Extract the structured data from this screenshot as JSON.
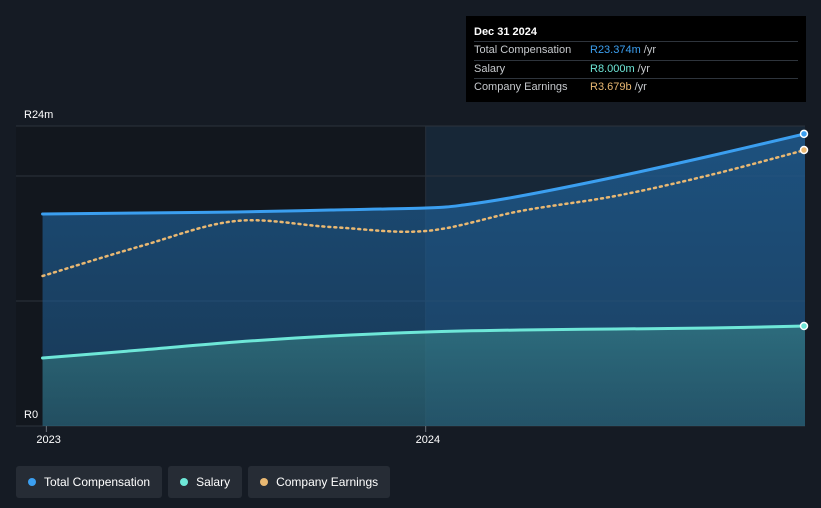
{
  "tooltip": {
    "date": "Dec 31 2024",
    "rows": [
      {
        "label": "Total Compensation",
        "value": "R23.374m",
        "unit": "/yr",
        "color": "#3b9ff0"
      },
      {
        "label": "Salary",
        "value": "R8.000m",
        "unit": "/yr",
        "color": "#6ee7d8"
      },
      {
        "label": "Company Earnings",
        "value": "R3.679b",
        "unit": "/yr",
        "color": "#e9b872"
      }
    ]
  },
  "legend": [
    {
      "label": "Total Compensation",
      "color": "#3b9ff0"
    },
    {
      "label": "Salary",
      "color": "#6ee7d8"
    },
    {
      "label": "Company Earnings",
      "color": "#e9b872"
    }
  ],
  "chart_data": {
    "type": "area",
    "title": "",
    "xlabel": "",
    "ylabel": "",
    "ylim": [
      0,
      24
    ],
    "y_tick_labels": [
      {
        "value": 24,
        "label": "R24m"
      },
      {
        "value": 0,
        "label": "R0"
      }
    ],
    "x_tick_labels": [
      {
        "value": 2023.0,
        "label": "2023"
      },
      {
        "value": 2024.0,
        "label": "2024"
      }
    ],
    "xlim": [
      2022.92,
      2025.0
    ],
    "highlight_from": 2024.0,
    "series": [
      {
        "name": "Total Compensation",
        "color": "#3b9ff0",
        "style": "solid-area",
        "x": [
          2022.99,
          2023.25,
          2023.5,
          2023.75,
          2024.0,
          2024.1,
          2024.25,
          2024.5,
          2024.75,
          2025.0
        ],
        "values": [
          16.96,
          17.04,
          17.12,
          17.28,
          17.44,
          17.68,
          18.4,
          19.92,
          21.6,
          23.374
        ]
      },
      {
        "name": "Salary",
        "color": "#6ee7d8",
        "style": "solid-area",
        "x": [
          2022.99,
          2023.25,
          2023.5,
          2023.75,
          2024.0,
          2024.25,
          2024.5,
          2024.75,
          2025.0
        ],
        "values": [
          5.44,
          6.08,
          6.72,
          7.2,
          7.52,
          7.68,
          7.76,
          7.84,
          8.0
        ]
      },
      {
        "name": "Company Earnings",
        "color": "#e9b872",
        "style": "dotted",
        "x": [
          2022.99,
          2023.25,
          2023.5,
          2023.75,
          2024.0,
          2024.25,
          2024.5,
          2024.75,
          2025.0
        ],
        "values": [
          12.0,
          14.4,
          16.4,
          15.92,
          15.6,
          17.2,
          18.4,
          20.08,
          22.08
        ]
      }
    ]
  }
}
